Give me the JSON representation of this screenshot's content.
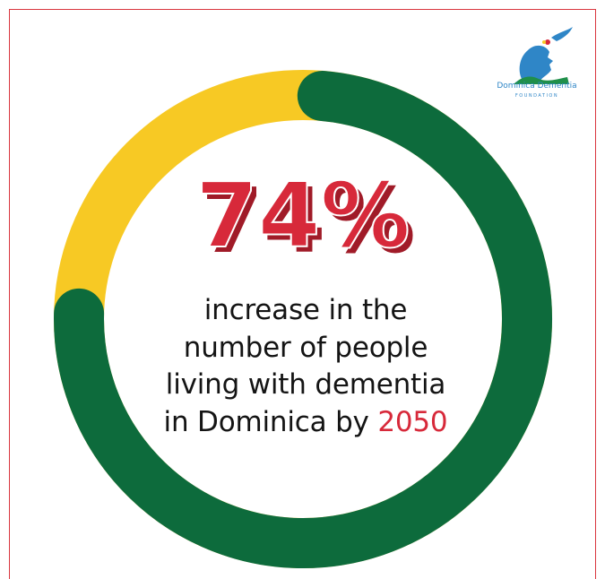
{
  "stat": {
    "percent_label": "74%",
    "percent_value": 74,
    "line1": "increase in the",
    "line2": "number of people",
    "line3": "living with dementia",
    "line4_prefix": "in Dominica by ",
    "year": "2050"
  },
  "logo": {
    "name": "Dominica Dementia",
    "subtitle": "FOUNDATION",
    "icon": "head-profile-icon"
  },
  "colors": {
    "frame_border": "#d9363e",
    "ring_green": "#0d6b3c",
    "ring_yellow": "#f7c924",
    "percent_red": "#d7293a",
    "text_dark": "#141414",
    "logo_blue": "#2f86c7"
  }
}
